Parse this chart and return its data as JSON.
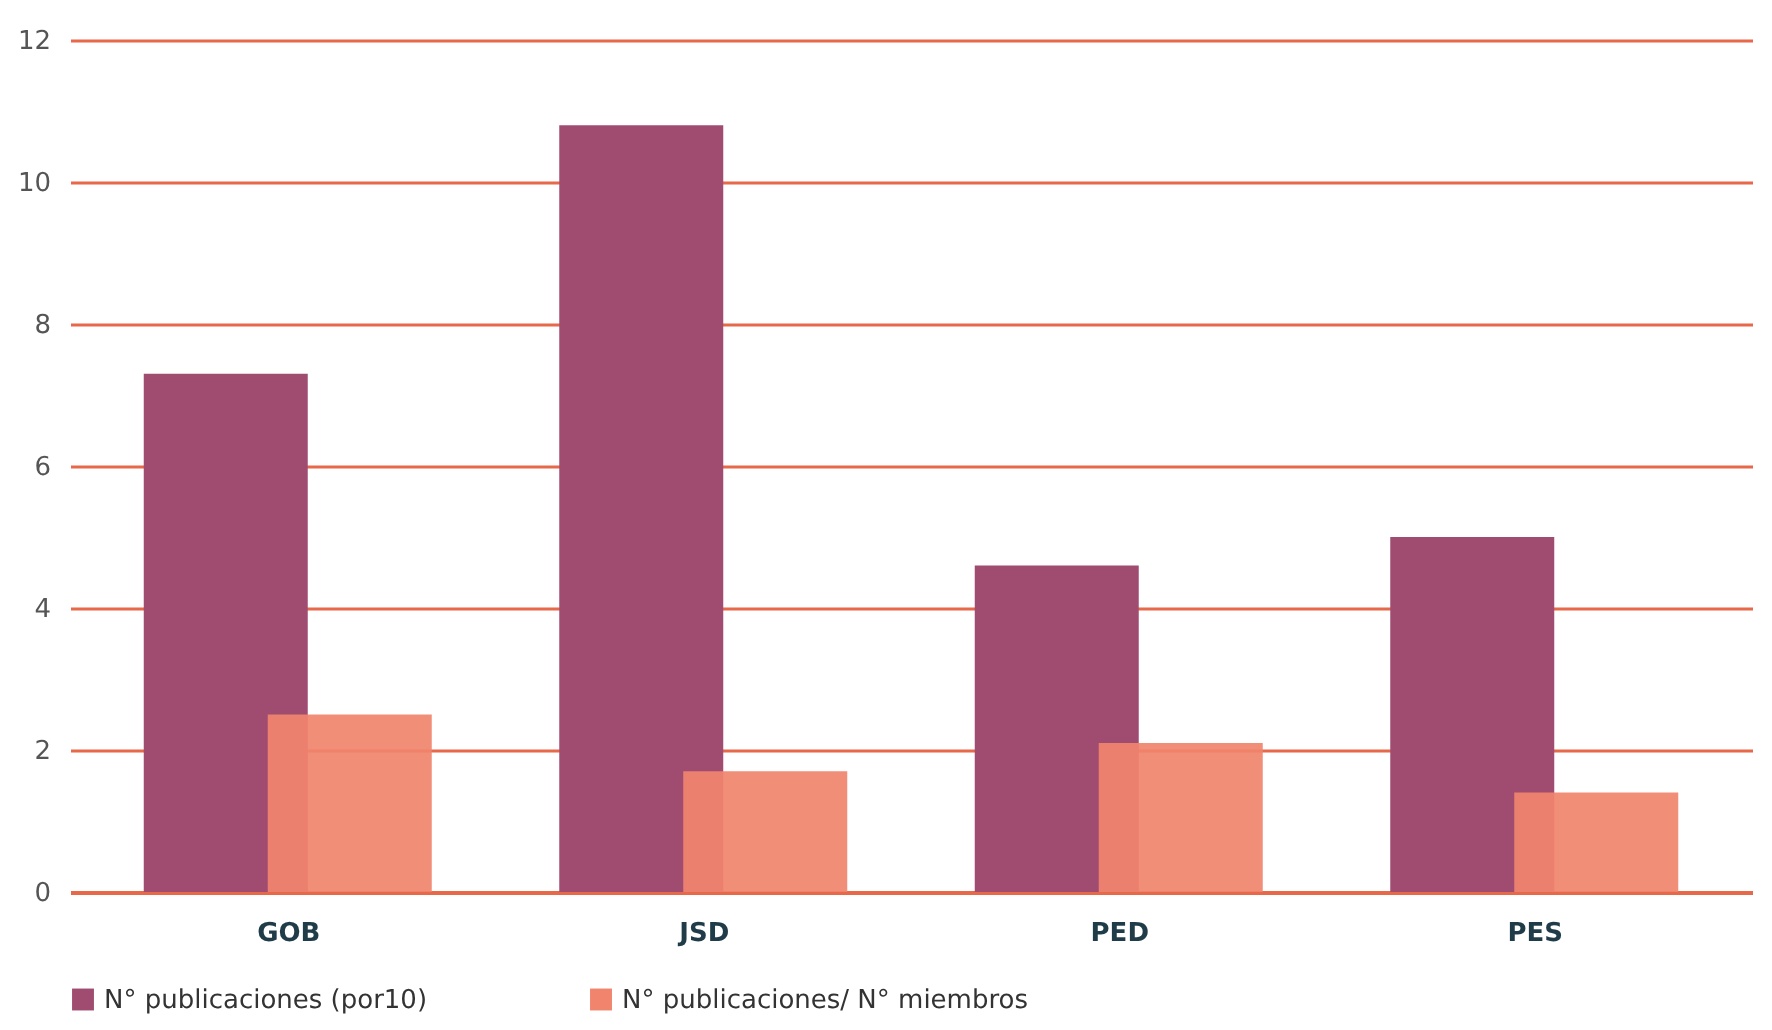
{
  "chart_data": {
    "type": "bar",
    "categories": [
      "GOB",
      "JSD",
      "PED",
      "PES"
    ],
    "series": [
      {
        "name": "N° publicaciones (por10)",
        "color": "#a04c70",
        "values": [
          7.3,
          10.8,
          4.6,
          5.0
        ]
      },
      {
        "name": "N° publicaciones/ N° miembros",
        "color": "#f0846c",
        "values": [
          2.5,
          1.7,
          2.1,
          1.4
        ]
      }
    ],
    "ylim": [
      0,
      12
    ],
    "yticks": [
      0,
      2,
      4,
      6,
      8,
      10,
      12
    ],
    "grid": "y",
    "legend": "bottom"
  }
}
